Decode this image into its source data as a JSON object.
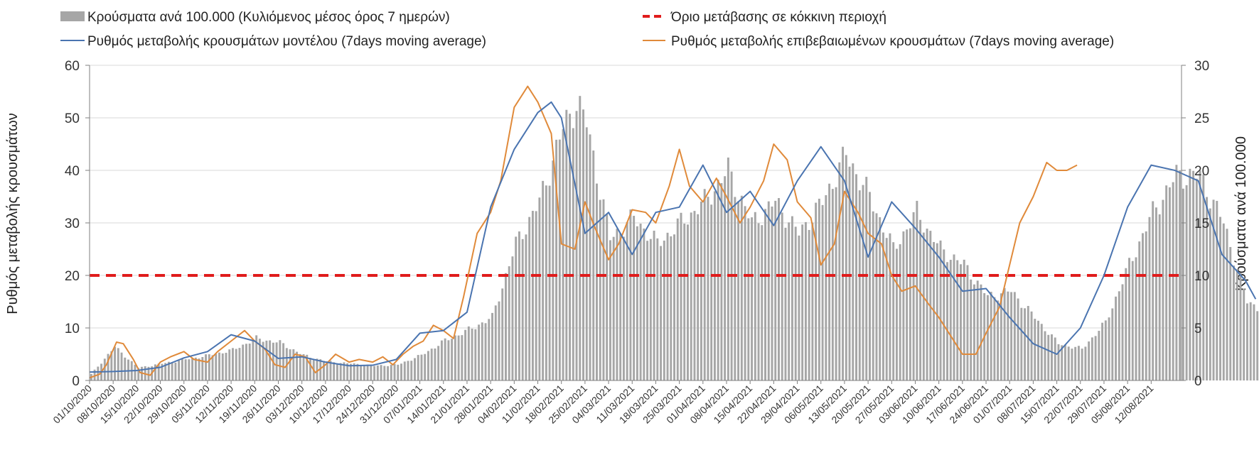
{
  "chart_data": {
    "type": "bar+line",
    "colors": {
      "bars": "#a6a6a6",
      "model_line": "#4a74b0",
      "confirmed_line": "#e08a3a",
      "threshold": "#e01c1c",
      "grid": "#d9d9d9",
      "axis": "#7f7f7f"
    },
    "legend": {
      "bars": "Κρούσματα ανά 100.000 (Κυλιόμενος μέσος όρος 7 ημερών)",
      "threshold": "Όριο μετάβασης σε κόκκινη περιοχή",
      "model": "Ρυθμός μεταβολής κρουσμάτων μοντέλου (7days moving average)",
      "confirmed": "Ρυθμός μεταβολής επιβεβαιωμένων κρουσμάτων (7days moving average)"
    },
    "y_left_label": "Ρυθμός μεταβολής κρουσμάτων",
    "y_right_label": "Κρούσματα ανά 100.000",
    "y_left_range": [
      0,
      60
    ],
    "y_left_ticks": [
      "0",
      "10",
      "20",
      "30",
      "40",
      "50",
      "60"
    ],
    "y_right_range": [
      0,
      30
    ],
    "y_right_ticks": [
      "0",
      "5",
      "10",
      "15",
      "20",
      "25",
      "30"
    ],
    "threshold_value": 20,
    "start_date": "01/10/2020",
    "n_days": 324,
    "x_tick_labels": [
      "01/10/2020",
      "08/10/2020",
      "15/10/2020",
      "22/10/2020",
      "29/10/2020",
      "05/11/2020",
      "12/11/2020",
      "19/11/2020",
      "26/11/2020",
      "03/12/2020",
      "10/12/2020",
      "17/12/2020",
      "24/12/2020",
      "31/12/2020",
      "07/01/2021",
      "14/01/2021",
      "21/01/2021",
      "28/01/2021",
      "04/02/2021",
      "11/02/2021",
      "18/02/2021",
      "25/02/2021",
      "04/03/2021",
      "11/03/2021",
      "18/03/2021",
      "25/03/2021",
      "01/04/2021",
      "08/04/2021",
      "15/04/2021",
      "22/04/2021",
      "29/04/2021",
      "06/05/2021",
      "13/05/2021",
      "20/05/2021",
      "27/05/2021",
      "03/06/2021",
      "10/06/2021",
      "17/06/2021",
      "24/06/2021",
      "01/07/2021",
      "08/07/2021",
      "15/07/2021",
      "22/07/2021",
      "29/07/2021",
      "05/08/2021",
      "12/08/2021"
    ],
    "bars_series": [
      [
        0,
        0.6
      ],
      [
        7,
        3.2
      ],
      [
        14,
        1.2
      ],
      [
        21,
        1.6
      ],
      [
        28,
        2.0
      ],
      [
        35,
        2.4
      ],
      [
        42,
        2.9
      ],
      [
        49,
        4.0
      ],
      [
        56,
        3.6
      ],
      [
        63,
        2.4
      ],
      [
        70,
        1.8
      ],
      [
        77,
        1.6
      ],
      [
        84,
        1.4
      ],
      [
        91,
        1.5
      ],
      [
        98,
        2.4
      ],
      [
        105,
        3.8
      ],
      [
        112,
        4.8
      ],
      [
        119,
        6.0
      ],
      [
        126,
        13.0
      ],
      [
        133,
        17.0
      ],
      [
        140,
        24.0
      ],
      [
        144,
        26.5
      ],
      [
        147,
        24.5
      ],
      [
        154,
        13.5
      ],
      [
        161,
        15.5
      ],
      [
        168,
        13.0
      ],
      [
        175,
        15.0
      ],
      [
        182,
        17.0
      ],
      [
        189,
        20.0
      ],
      [
        196,
        15.0
      ],
      [
        203,
        17.0
      ],
      [
        210,
        14.0
      ],
      [
        217,
        17.0
      ],
      [
        224,
        21.5
      ],
      [
        231,
        17.5
      ],
      [
        238,
        12.5
      ],
      [
        245,
        16.0
      ],
      [
        252,
        12.5
      ],
      [
        259,
        11.0
      ],
      [
        266,
        8.0
      ],
      [
        273,
        8.5
      ],
      [
        280,
        6.0
      ],
      [
        287,
        3.5
      ],
      [
        294,
        3.0
      ],
      [
        301,
        5.5
      ],
      [
        308,
        11.0
      ],
      [
        315,
        16.0
      ],
      [
        322,
        19.5
      ],
      [
        329,
        19.5
      ],
      [
        336,
        15.0
      ],
      [
        343,
        7.5
      ],
      [
        346,
        7.0
      ]
    ],
    "model_series": [
      [
        0,
        1.6
      ],
      [
        7,
        1.7
      ],
      [
        14,
        1.9
      ],
      [
        21,
        2.5
      ],
      [
        28,
        4.3
      ],
      [
        35,
        5.5
      ],
      [
        42,
        8.7
      ],
      [
        49,
        7.5
      ],
      [
        56,
        4.2
      ],
      [
        63,
        4.5
      ],
      [
        70,
        3.5
      ],
      [
        77,
        2.8
      ],
      [
        84,
        2.9
      ],
      [
        91,
        4.0
      ],
      [
        98,
        9.0
      ],
      [
        105,
        9.5
      ],
      [
        112,
        13.0
      ],
      [
        119,
        33.0
      ],
      [
        126,
        44.0
      ],
      [
        133,
        51.0
      ],
      [
        137,
        53.0
      ],
      [
        140,
        50.0
      ],
      [
        147,
        28.0
      ],
      [
        154,
        32.0
      ],
      [
        161,
        24.0
      ],
      [
        168,
        32.0
      ],
      [
        175,
        33.0
      ],
      [
        182,
        41.0
      ],
      [
        189,
        32.0
      ],
      [
        196,
        36.0
      ],
      [
        203,
        29.5
      ],
      [
        210,
        38.0
      ],
      [
        217,
        44.5
      ],
      [
        224,
        38.0
      ],
      [
        231,
        23.5
      ],
      [
        238,
        34.0
      ],
      [
        245,
        29.0
      ],
      [
        252,
        23.5
      ],
      [
        259,
        17.0
      ],
      [
        266,
        17.5
      ],
      [
        273,
        12.0
      ],
      [
        280,
        7.0
      ],
      [
        287,
        5.0
      ],
      [
        294,
        10.0
      ],
      [
        301,
        20.0
      ],
      [
        308,
        33.0
      ],
      [
        315,
        41.0
      ],
      [
        322,
        40.0
      ],
      [
        329,
        38.0
      ],
      [
        336,
        24.0
      ],
      [
        343,
        19.0
      ],
      [
        346,
        15.5
      ]
    ],
    "confirmed_series": [
      [
        0,
        0.5
      ],
      [
        3,
        1.2
      ],
      [
        5,
        3.0
      ],
      [
        8,
        7.3
      ],
      [
        10,
        7.0
      ],
      [
        13,
        4.0
      ],
      [
        15,
        1.5
      ],
      [
        18,
        1.0
      ],
      [
        21,
        3.5
      ],
      [
        24,
        4.5
      ],
      [
        28,
        5.5
      ],
      [
        31,
        4.0
      ],
      [
        35,
        3.5
      ],
      [
        38,
        5.5
      ],
      [
        42,
        7.5
      ],
      [
        46,
        9.5
      ],
      [
        49,
        7.5
      ],
      [
        52,
        6.0
      ],
      [
        55,
        3.0
      ],
      [
        58,
        2.5
      ],
      [
        61,
        5.0
      ],
      [
        64,
        4.5
      ],
      [
        67,
        1.5
      ],
      [
        70,
        3.0
      ],
      [
        73,
        5.0
      ],
      [
        77,
        3.5
      ],
      [
        80,
        4.0
      ],
      [
        84,
        3.5
      ],
      [
        87,
        4.5
      ],
      [
        90,
        3.0
      ],
      [
        93,
        5.0
      ],
      [
        96,
        6.5
      ],
      [
        99,
        7.5
      ],
      [
        102,
        10.5
      ],
      [
        105,
        9.5
      ],
      [
        108,
        8.0
      ],
      [
        111,
        16.0
      ],
      [
        115,
        28.0
      ],
      [
        119,
        32.0
      ],
      [
        122,
        38.0
      ],
      [
        126,
        52.0
      ],
      [
        130,
        56.0
      ],
      [
        133,
        53.0
      ],
      [
        137,
        47.0
      ],
      [
        140,
        26.0
      ],
      [
        144,
        25.0
      ],
      [
        147,
        34.0
      ],
      [
        150,
        29.0
      ],
      [
        154,
        23.0
      ],
      [
        157,
        26.0
      ],
      [
        161,
        32.5
      ],
      [
        165,
        32.0
      ],
      [
        168,
        30.0
      ],
      [
        172,
        37.0
      ],
      [
        175,
        44.0
      ],
      [
        178,
        37.0
      ],
      [
        182,
        34.0
      ],
      [
        186,
        38.5
      ],
      [
        189,
        35.0
      ],
      [
        193,
        30.0
      ],
      [
        196,
        33.0
      ],
      [
        200,
        38.0
      ],
      [
        203,
        45.0
      ],
      [
        207,
        42.0
      ],
      [
        210,
        34.0
      ],
      [
        214,
        31.0
      ],
      [
        217,
        22.0
      ],
      [
        221,
        26.0
      ],
      [
        224,
        36.0
      ],
      [
        228,
        32.0
      ],
      [
        231,
        28.0
      ],
      [
        235,
        26.0
      ],
      [
        238,
        20.0
      ],
      [
        241,
        17.0
      ],
      [
        245,
        18.0
      ],
      [
        249,
        14.5
      ],
      [
        252,
        12.0
      ],
      [
        256,
        8.0
      ],
      [
        259,
        5.0
      ],
      [
        263,
        5.0
      ],
      [
        266,
        9.0
      ],
      [
        270,
        14.0
      ],
      [
        273,
        22.0
      ],
      [
        276,
        30.0
      ],
      [
        280,
        35.0
      ],
      [
        284,
        41.5
      ],
      [
        287,
        40.0
      ],
      [
        290,
        40.0
      ],
      [
        293,
        41.0
      ]
    ]
  }
}
